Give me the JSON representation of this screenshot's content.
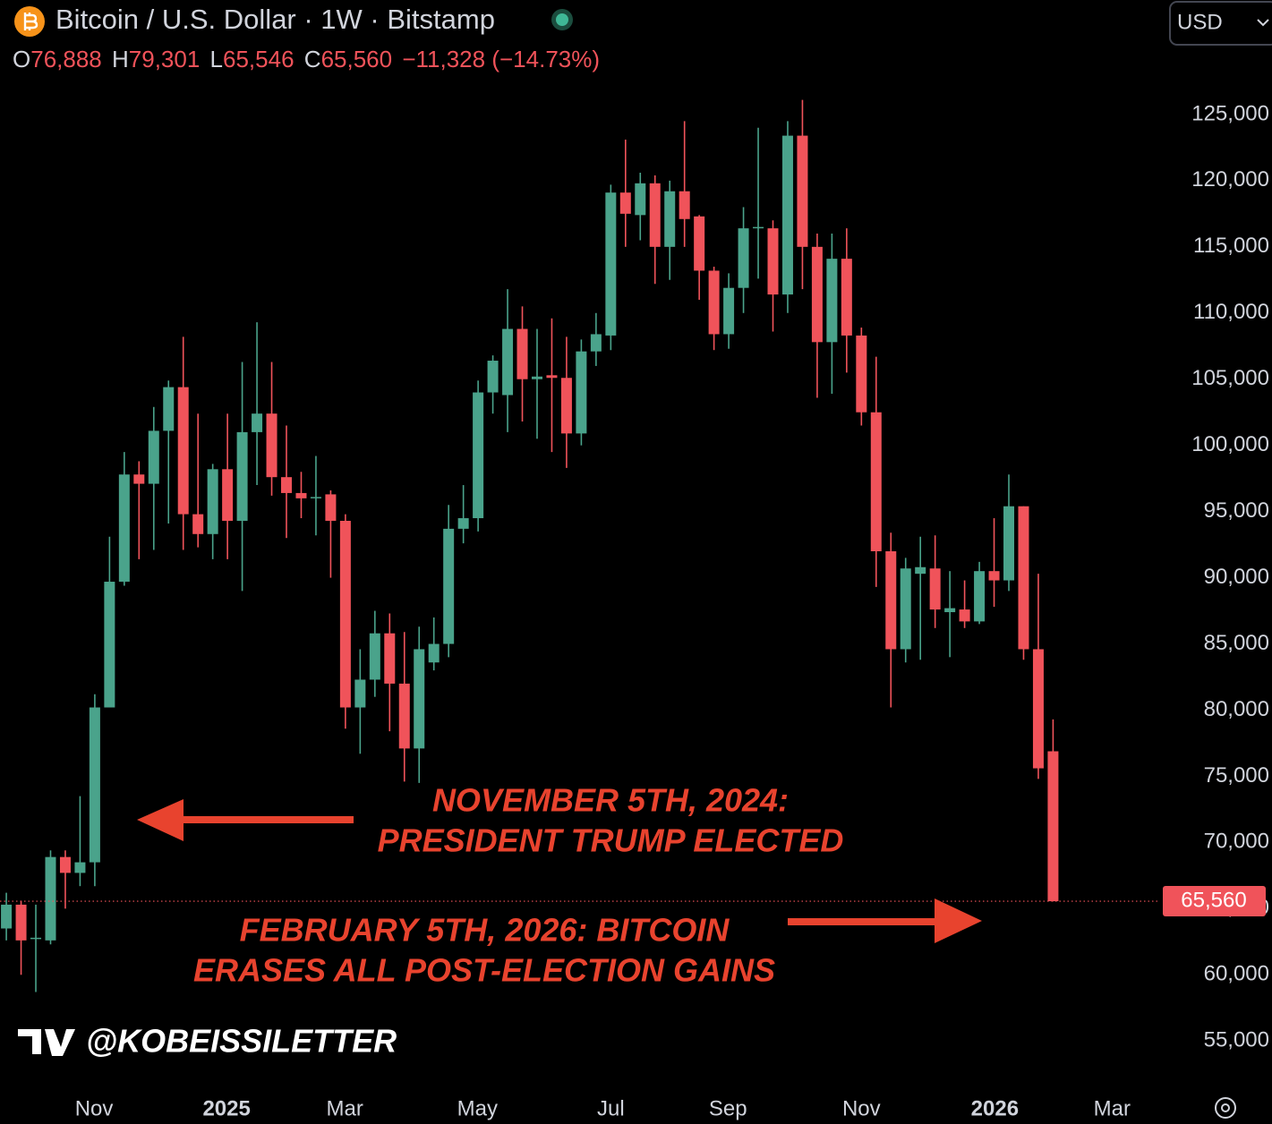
{
  "header": {
    "title": "Bitcoin / U.S. Dollar · 1W · Bitstamp",
    "ohlc": [
      {
        "key": "O",
        "value": "76,888"
      },
      {
        "key": "H",
        "value": "79,301"
      },
      {
        "key": "L",
        "value": "65,546"
      },
      {
        "key": "C",
        "value": "65,560"
      }
    ],
    "change": "−11,328 (−14.73%)",
    "currency": "USD"
  },
  "annotations": [
    [
      "NOVEMBER 5TH, 2024:",
      "PRESIDENT TRUMP ELECTED"
    ],
    [
      "FEBRUARY 5TH, 2026: BITCOIN",
      "ERASES ALL POST-ELECTION GAINS"
    ]
  ],
  "watermark": "@KOBEISSILETTER",
  "chart_data": {
    "type": "candlestick",
    "up_color": "#4aa38b",
    "down_color": "#f0535a",
    "grid": false,
    "open": [
      63500,
      65300,
      62700,
      62600,
      68900,
      67700,
      68500,
      80200,
      89700,
      97800,
      97100,
      101100,
      104400,
      94800,
      93300,
      98200,
      94300,
      101000,
      102400,
      97600,
      96400,
      96000,
      96300,
      94300,
      80200,
      82300,
      85800,
      82000,
      77100,
      83600,
      85000,
      93700,
      94500,
      104000,
      103800,
      108800,
      105000,
      105300,
      105100,
      100900,
      107100,
      108300,
      119100,
      117400,
      119800,
      115000,
      119200,
      117300,
      113200,
      108400,
      111900,
      116400,
      116400,
      111400,
      123400,
      115000,
      107800,
      114100,
      108300,
      102500,
      92000,
      84600,
      90300,
      90700,
      87400,
      87600,
      86700,
      90500,
      89800,
      95400,
      84600,
      76888
    ],
    "high": [
      66200,
      65600,
      65300,
      69400,
      69400,
      73500,
      81200,
      93100,
      99500,
      98800,
      102900,
      104900,
      108200,
      102400,
      98600,
      102400,
      106300,
      109300,
      106300,
      101500,
      98000,
      99200,
      96600,
      94800,
      84600,
      87500,
      87300,
      85900,
      86300,
      87000,
      95500,
      97000,
      104900,
      106800,
      111800,
      110500,
      108800,
      109600,
      108200,
      108000,
      110000,
      119700,
      123100,
      120600,
      120400,
      120000,
      124500,
      117400,
      113500,
      113000,
      118000,
      124000,
      117000,
      124500,
      126100,
      116000,
      116000,
      116400,
      108900,
      106700,
      93400,
      91500,
      93100,
      93200,
      90500,
      89800,
      91200,
      94500,
      97800,
      95400,
      90300,
      79301
    ],
    "low": [
      62600,
      60000,
      58700,
      62300,
      65000,
      66700,
      66700,
      80200,
      89400,
      91400,
      92100,
      94100,
      92100,
      92300,
      91400,
      91400,
      89000,
      97000,
      96200,
      93000,
      94500,
      93200,
      90000,
      78600,
      76700,
      81000,
      78400,
      74600,
      74500,
      83000,
      84000,
      92600,
      93500,
      102400,
      101000,
      101800,
      100500,
      99500,
      98300,
      100000,
      106000,
      107200,
      115000,
      115500,
      112200,
      112500,
      115000,
      111000,
      107200,
      107300,
      110000,
      112600,
      108600,
      110000,
      111800,
      103600,
      103900,
      105500,
      101500,
      89300,
      80200,
      83600,
      83800,
      86200,
      84000,
      86200,
      86500,
      87800,
      89000,
      83800,
      74800,
      65546
    ],
    "close": [
      65300,
      62600,
      62800,
      68900,
      67700,
      68500,
      80200,
      89700,
      97800,
      97100,
      101100,
      104400,
      94800,
      93300,
      98200,
      94300,
      101000,
      102400,
      97600,
      96400,
      96000,
      96100,
      94300,
      80200,
      82300,
      85800,
      82000,
      77100,
      84600,
      85000,
      93700,
      94500,
      104000,
      106400,
      108800,
      105000,
      105200,
      105100,
      100900,
      107100,
      108400,
      119100,
      117500,
      119800,
      115000,
      119200,
      117100,
      113200,
      108400,
      111900,
      116400,
      116500,
      111400,
      123400,
      115000,
      107800,
      114100,
      108300,
      102500,
      92000,
      84600,
      90700,
      90800,
      87600,
      87700,
      86700,
      90500,
      89800,
      95400,
      84600,
      75600,
      65560
    ],
    "last_price_label": "65,560",
    "ylim": [
      51500,
      133650
    ],
    "yticks": [
      {
        "value": 55000,
        "label": "55,000"
      },
      {
        "value": 60000,
        "label": "60,000"
      },
      {
        "value": 65000,
        "label": "65,000"
      },
      {
        "value": 70000,
        "label": "70,000"
      },
      {
        "value": 75000,
        "label": "75,000"
      },
      {
        "value": 80000,
        "label": "80,000"
      },
      {
        "value": 85000,
        "label": "85,000"
      },
      {
        "value": 90000,
        "label": "90,000"
      },
      {
        "value": 95000,
        "label": "95,000"
      },
      {
        "value": 100000,
        "label": "100,000"
      },
      {
        "value": 105000,
        "label": "105,000"
      },
      {
        "value": 110000,
        "label": "110,000"
      },
      {
        "value": 115000,
        "label": "115,000"
      },
      {
        "value": 120000,
        "label": "120,000"
      },
      {
        "value": 125000,
        "label": "125,000"
      }
    ],
    "xlim": [
      -0.43,
      78.2
    ],
    "xticks": [
      {
        "value": 5.95,
        "label": "Nov"
      },
      {
        "value": 14.94,
        "label": "2025"
      },
      {
        "value": 22.96,
        "label": "Mar"
      },
      {
        "value": 31.95,
        "label": "May"
      },
      {
        "value": 41.0,
        "label": "Jul"
      },
      {
        "value": 48.95,
        "label": "Sep"
      },
      {
        "value": 58.0,
        "label": "Nov"
      },
      {
        "value": 67.05,
        "label": "2026"
      },
      {
        "value": 75.0,
        "label": "Mar"
      }
    ]
  }
}
